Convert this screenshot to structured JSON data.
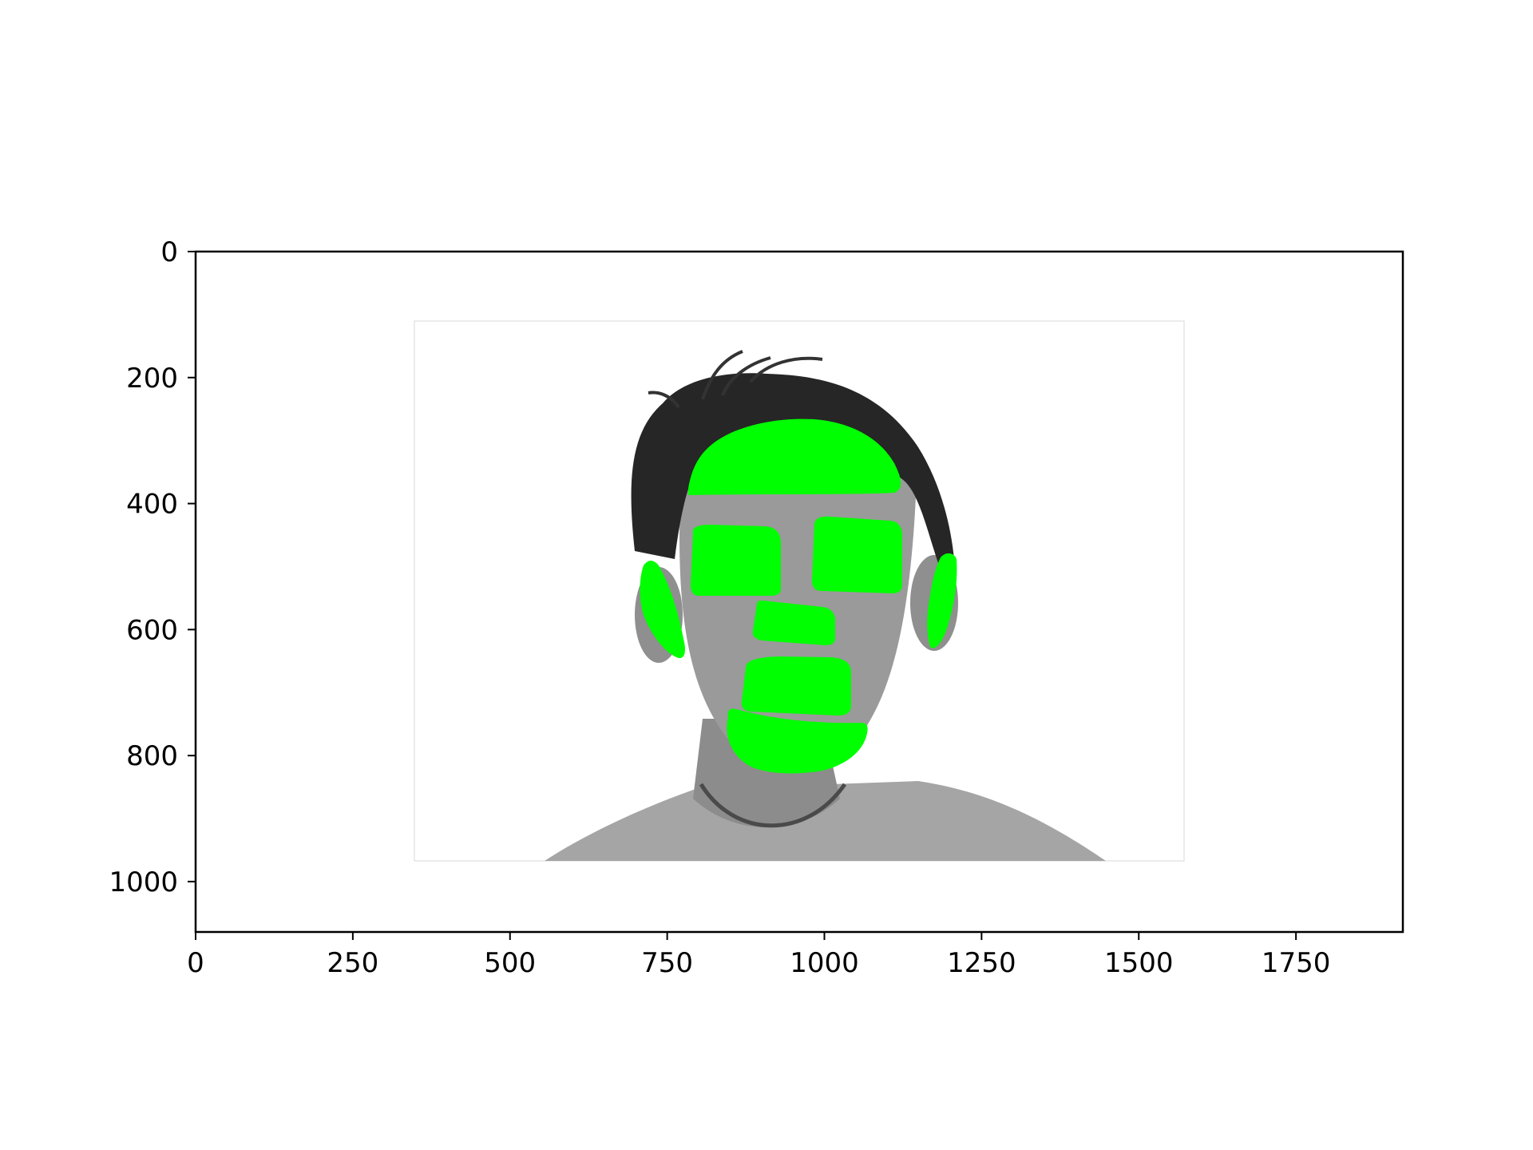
{
  "figure": {
    "type": "image-plot",
    "image_extent": {
      "width": 1920,
      "height": 1080
    },
    "x_axis": {
      "ticks": [
        {
          "value": 0,
          "label": "0"
        },
        {
          "value": 250,
          "label": "250"
        },
        {
          "value": 500,
          "label": "500"
        },
        {
          "value": 750,
          "label": "750"
        },
        {
          "value": 1000,
          "label": "1000"
        },
        {
          "value": 1250,
          "label": "1250"
        },
        {
          "value": 1500,
          "label": "1500"
        },
        {
          "value": 1750,
          "label": "1750"
        }
      ],
      "range": [
        0,
        1920
      ]
    },
    "y_axis": {
      "ticks": [
        {
          "value": 0,
          "label": "0"
        },
        {
          "value": 200,
          "label": "200"
        },
        {
          "value": 400,
          "label": "400"
        },
        {
          "value": 600,
          "label": "600"
        },
        {
          "value": 800,
          "label": "800"
        },
        {
          "value": 1000,
          "label": "1000"
        }
      ],
      "range": [
        0,
        1080
      ],
      "inverted": true
    },
    "grid": false,
    "photo": {
      "subject": "grayscale portrait of a man facing forward, short dark hair, light crew-neck t-shirt",
      "overlay_color": "#00ff00",
      "overlay_regions": [
        "forehead-patch",
        "left-cheek-patch",
        "right-cheek-patch",
        "nose-patch",
        "upper-lip-patch",
        "chin-patch",
        "left-ear-patch",
        "right-ear-patch"
      ]
    }
  }
}
